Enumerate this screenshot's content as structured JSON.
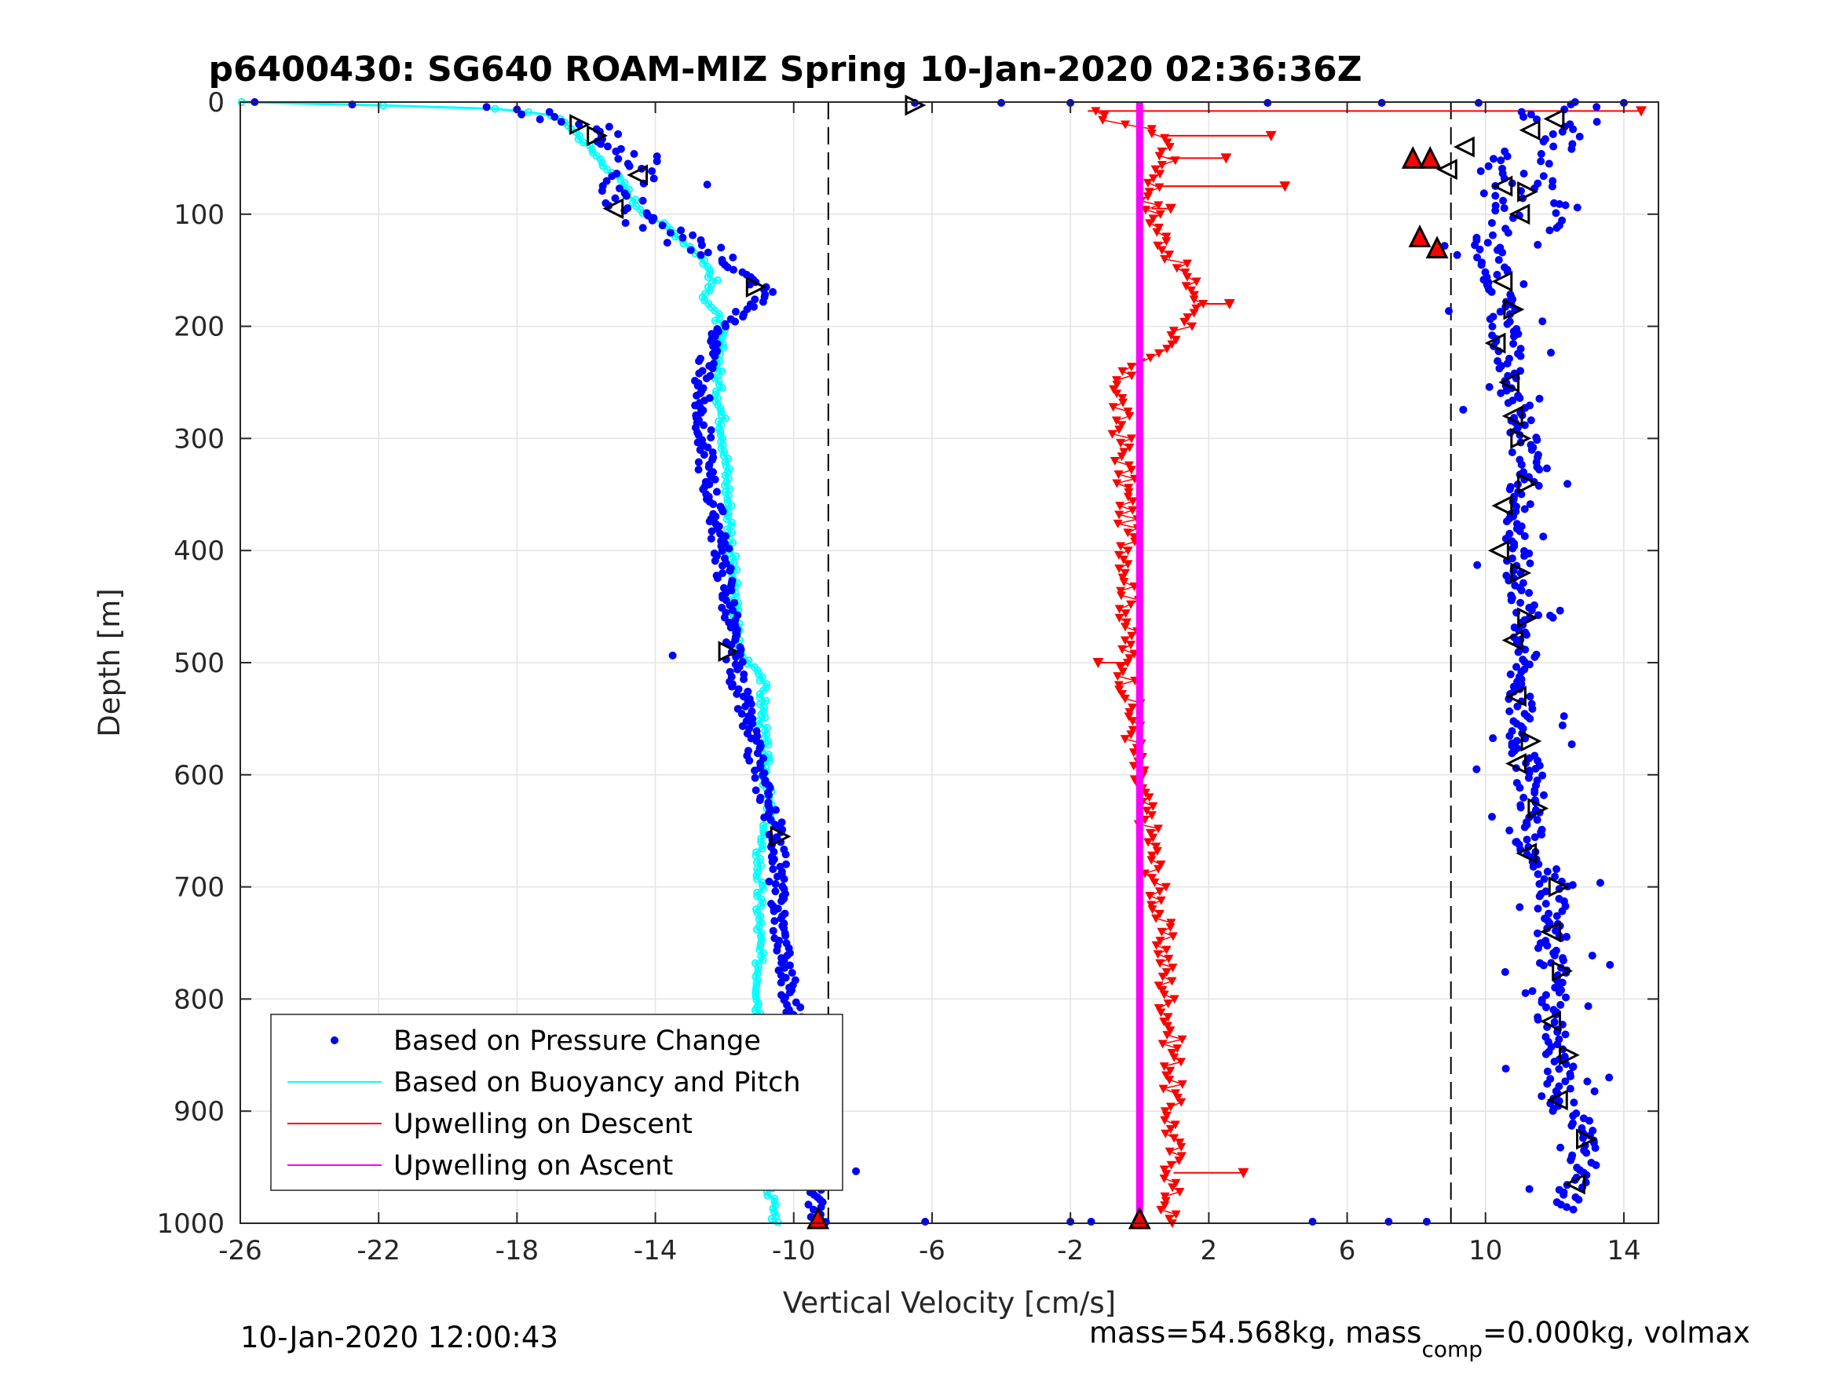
{
  "chart_data": {
    "type": "scatter",
    "title": "p6400430: SG640 ROAM-MIZ Spring 10-Jan-2020 02:36:36Z",
    "xlabel": "Vertical Velocity [cm/s]",
    "ylabel": "Depth [m]",
    "xlim": [
      -26,
      15
    ],
    "ylim": [
      1000,
      0
    ],
    "y_reversed": true,
    "grid": true,
    "x_ticks": [
      -26,
      -22,
      -18,
      -14,
      -10,
      -6,
      -2,
      2,
      6,
      10,
      14
    ],
    "x_tick_labels": [
      "-26",
      "-22",
      "-18",
      "-14",
      "-10",
      "-6",
      "-2",
      "2",
      "6",
      "10",
      "14"
    ],
    "y_ticks": [
      0,
      100,
      200,
      300,
      400,
      500,
      600,
      700,
      800,
      900,
      1000
    ],
    "y_tick_labels": [
      "0",
      "100",
      "200",
      "300",
      "400",
      "500",
      "600",
      "700",
      "800",
      "900",
      "1000"
    ],
    "reference_lines": [
      -9,
      9
    ],
    "legend_position": "bottom-left",
    "legend": [
      {
        "label": "Based on Pressure Change",
        "color": "#0000ff",
        "marker": "dot"
      },
      {
        "label": "Based on Buoyancy and Pitch",
        "color": "#00ffff",
        "marker": "line"
      },
      {
        "label": "Upwelling on Descent",
        "color": "#ff0000",
        "marker": "line"
      },
      {
        "label": "Upwelling on Ascent",
        "color": "#ff00ff",
        "marker": "line"
      }
    ],
    "series": [
      {
        "name": "Based on Pressure Change",
        "color": "#0000ff",
        "descent": [
          [
            0,
            -25
          ],
          [
            5,
            -18.5
          ],
          [
            10,
            -17.5
          ],
          [
            20,
            -16
          ],
          [
            30,
            -15.3
          ],
          [
            40,
            -14.8
          ],
          [
            55,
            -14.5
          ],
          [
            70,
            -14.7
          ],
          [
            85,
            -15.0
          ],
          [
            100,
            -14.6
          ],
          [
            115,
            -13.8
          ],
          [
            130,
            -12.8
          ],
          [
            145,
            -11.8
          ],
          [
            160,
            -11.2
          ],
          [
            170,
            -10.7
          ],
          [
            180,
            -11.1
          ],
          [
            190,
            -11.6
          ],
          [
            200,
            -12.0
          ],
          [
            215,
            -12.4
          ],
          [
            240,
            -12.6
          ],
          [
            270,
            -12.7
          ],
          [
            300,
            -12.6
          ],
          [
            330,
            -12.5
          ],
          [
            360,
            -12.3
          ],
          [
            400,
            -12.1
          ],
          [
            440,
            -11.9
          ],
          [
            480,
            -11.8
          ],
          [
            520,
            -11.6
          ],
          [
            560,
            -11.3
          ],
          [
            600,
            -11.0
          ],
          [
            640,
            -10.6
          ],
          [
            660,
            -10.4
          ],
          [
            700,
            -10.5
          ],
          [
            760,
            -10.3
          ],
          [
            800,
            -10.1
          ],
          [
            840,
            -9.8
          ],
          [
            880,
            -9.6
          ],
          [
            920,
            -9.5
          ],
          [
            960,
            -9.4
          ],
          [
            1000,
            -9.3
          ]
        ],
        "ascent": [
          [
            0,
            12
          ],
          [
            20,
            12.2
          ],
          [
            40,
            11.5
          ],
          [
            55,
            11.2
          ],
          [
            70,
            10.8
          ],
          [
            85,
            11.0
          ],
          [
            100,
            11.3
          ],
          [
            115,
            10.8
          ],
          [
            130,
            10.2
          ],
          [
            150,
            10.3
          ],
          [
            170,
            10.4
          ],
          [
            190,
            10.5
          ],
          [
            210,
            10.6
          ],
          [
            240,
            10.7
          ],
          [
            270,
            10.9
          ],
          [
            300,
            11.1
          ],
          [
            330,
            11.2
          ],
          [
            360,
            11.0
          ],
          [
            400,
            10.9
          ],
          [
            430,
            11.0
          ],
          [
            460,
            11.2
          ],
          [
            500,
            11.1
          ],
          [
            540,
            11.0
          ],
          [
            580,
            11.1
          ],
          [
            620,
            11.4
          ],
          [
            660,
            11.2
          ],
          [
            700,
            12.0
          ],
          [
            740,
            11.8
          ],
          [
            780,
            12.1
          ],
          [
            820,
            11.8
          ],
          [
            860,
            12.2
          ],
          [
            890,
            12.0
          ],
          [
            920,
            13.0
          ],
          [
            950,
            12.8
          ],
          [
            970,
            12.4
          ],
          [
            990,
            12.2
          ]
        ],
        "surface_outliers": [
          [
            0,
            -6.5
          ],
          [
            0,
            -4
          ],
          [
            0,
            -2
          ],
          [
            0,
            3.7
          ],
          [
            0,
            7
          ],
          [
            0,
            9.8
          ],
          [
            0,
            14
          ]
        ]
      },
      {
        "name": "Based on Buoyancy and Pitch",
        "color": "#00ffff",
        "descent": [
          [
            0,
            -26
          ],
          [
            5,
            -19
          ],
          [
            10,
            -17.2
          ],
          [
            20,
            -16.5
          ],
          [
            30,
            -16.2
          ],
          [
            45,
            -15.8
          ],
          [
            60,
            -15.3
          ],
          [
            75,
            -14.9
          ],
          [
            90,
            -14.6
          ],
          [
            105,
            -14.0
          ],
          [
            120,
            -13.3
          ],
          [
            140,
            -12.6
          ],
          [
            160,
            -12.3
          ],
          [
            170,
            -12.6
          ],
          [
            180,
            -12.4
          ],
          [
            200,
            -12.1
          ],
          [
            250,
            -12.2
          ],
          [
            300,
            -12.0
          ],
          [
            350,
            -11.9
          ],
          [
            400,
            -11.8
          ],
          [
            450,
            -11.7
          ],
          [
            490,
            -11.6
          ],
          [
            510,
            -10.9
          ],
          [
            550,
            -10.9
          ],
          [
            600,
            -10.8
          ],
          [
            640,
            -10.7
          ],
          [
            660,
            -11.0
          ],
          [
            700,
            -11.0
          ],
          [
            750,
            -11.0
          ],
          [
            800,
            -11.0
          ],
          [
            850,
            -11.0
          ],
          [
            900,
            -11.0
          ],
          [
            950,
            -10.8
          ],
          [
            1000,
            -10.5
          ]
        ]
      },
      {
        "name": "Upwelling on Descent",
        "color": "#ff0000",
        "descent": [
          [
            10,
            -1.5
          ],
          [
            30,
            0.8
          ],
          [
            50,
            0.8
          ],
          [
            70,
            0.5
          ],
          [
            90,
            0.3
          ],
          [
            110,
            0.5
          ],
          [
            130,
            0.8
          ],
          [
            150,
            1.2
          ],
          [
            170,
            1.6
          ],
          [
            185,
            1.7
          ],
          [
            200,
            1.4
          ],
          [
            215,
            0.8
          ],
          [
            240,
            -0.5
          ],
          [
            270,
            -0.6
          ],
          [
            300,
            -0.5
          ],
          [
            350,
            -0.4
          ],
          [
            400,
            -0.3
          ],
          [
            450,
            -0.3
          ],
          [
            500,
            -0.4
          ],
          [
            550,
            -0.2
          ],
          [
            600,
            -0.1
          ],
          [
            650,
            0.3
          ],
          [
            700,
            0.5
          ],
          [
            750,
            0.7
          ],
          [
            800,
            0.8
          ],
          [
            850,
            1.0
          ],
          [
            900,
            0.9
          ],
          [
            950,
            1.0
          ],
          [
            1000,
            0.8
          ]
        ],
        "spikes": [
          [
            8,
            14.5
          ],
          [
            30,
            3.8
          ],
          [
            50,
            2.5
          ],
          [
            75,
            4.2
          ],
          [
            95,
            0.9
          ],
          [
            180,
            2.6
          ],
          [
            500,
            -1.2
          ],
          [
            955,
            3.0
          ]
        ]
      },
      {
        "name": "Upwelling on Ascent",
        "color": "#ff00ff",
        "value": 0
      }
    ],
    "stall_markers": [
      {
        "depth": 20,
        "x": -16.2,
        "dir": "right"
      },
      {
        "depth": 30,
        "x": -15.7,
        "dir": "right"
      },
      {
        "depth": 65,
        "x": -14.5,
        "dir": "left"
      },
      {
        "depth": 95,
        "x": -15.2,
        "dir": "left"
      },
      {
        "depth": 165,
        "x": -11.1,
        "dir": "right"
      },
      {
        "depth": 490,
        "x": -11.9,
        "dir": "right"
      },
      {
        "depth": 655,
        "x": -10.4,
        "dir": "right"
      },
      {
        "depth": 950,
        "x": -9.5,
        "dir": "right"
      },
      {
        "depth": 0,
        "x": -6.5,
        "dir": "right"
      },
      {
        "depth": 15,
        "x": 12.0,
        "dir": "left"
      },
      {
        "depth": 25,
        "x": 11.3,
        "dir": "left"
      },
      {
        "depth": 40,
        "x": 9.4,
        "dir": "left"
      },
      {
        "depth": 60,
        "x": 8.9,
        "dir": "left"
      },
      {
        "depth": 75,
        "x": 10.5,
        "dir": "left"
      },
      {
        "depth": 80,
        "x": 11.2,
        "dir": "right"
      },
      {
        "depth": 100,
        "x": 11.0,
        "dir": "left"
      },
      {
        "depth": 160,
        "x": 10.5,
        "dir": "left"
      },
      {
        "depth": 185,
        "x": 10.8,
        "dir": "right"
      },
      {
        "depth": 215,
        "x": 10.3,
        "dir": "left"
      },
      {
        "depth": 250,
        "x": 10.7,
        "dir": "left"
      },
      {
        "depth": 280,
        "x": 10.8,
        "dir": "left"
      },
      {
        "depth": 300,
        "x": 11.0,
        "dir": "right"
      },
      {
        "depth": 340,
        "x": 11.2,
        "dir": "right"
      },
      {
        "depth": 360,
        "x": 10.5,
        "dir": "left"
      },
      {
        "depth": 400,
        "x": 10.4,
        "dir": "left"
      },
      {
        "depth": 420,
        "x": 11.0,
        "dir": "right"
      },
      {
        "depth": 460,
        "x": 11.2,
        "dir": "right"
      },
      {
        "depth": 480,
        "x": 10.8,
        "dir": "left"
      },
      {
        "depth": 530,
        "x": 10.9,
        "dir": "left"
      },
      {
        "depth": 570,
        "x": 11.3,
        "dir": "right"
      },
      {
        "depth": 590,
        "x": 10.9,
        "dir": "left"
      },
      {
        "depth": 630,
        "x": 11.5,
        "dir": "right"
      },
      {
        "depth": 670,
        "x": 11.2,
        "dir": "left"
      },
      {
        "depth": 700,
        "x": 12.1,
        "dir": "right"
      },
      {
        "depth": 740,
        "x": 11.9,
        "dir": "left"
      },
      {
        "depth": 775,
        "x": 12.2,
        "dir": "right"
      },
      {
        "depth": 820,
        "x": 11.9,
        "dir": "left"
      },
      {
        "depth": 850,
        "x": 12.4,
        "dir": "right"
      },
      {
        "depth": 890,
        "x": 12.1,
        "dir": "left"
      },
      {
        "depth": 925,
        "x": 12.9,
        "dir": "right"
      },
      {
        "depth": 965,
        "x": 12.6,
        "dir": "left"
      }
    ],
    "apogee_markers": [
      {
        "depth": 50,
        "x": 7.9
      },
      {
        "depth": 50,
        "x": 8.4
      },
      {
        "depth": 120,
        "x": 8.1
      },
      {
        "depth": 130,
        "x": 8.6
      },
      {
        "depth": 1000,
        "x": -9.3
      },
      {
        "depth": 1000,
        "x": 0
      }
    ]
  },
  "footer": {
    "timestamp": "10-Jan-2020 12:00:43",
    "mass_text_prefix": "mass=54.568kg, mass",
    "mass_subscript": "comp",
    "mass_text_suffix": "=0.000kg, volmax"
  }
}
